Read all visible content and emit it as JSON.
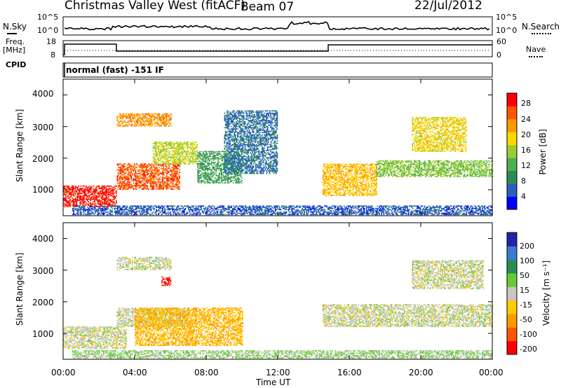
{
  "header": {
    "title": "Christmas Valley West (fitACF)",
    "beam": "Beam 07",
    "date": "22/Jul/2012"
  },
  "left_labels": {
    "nsky": "N.Sky",
    "freq_line1": "Freq.",
    "freq_line2": "[MHz]",
    "cpid": "CPID"
  },
  "right_labels": {
    "nsearch": "N.Search",
    "nave": "Nave"
  },
  "cpid_text": "normal (fast) -151 IF",
  "axes": {
    "noise_left_ticks": [
      "10^5",
      "10^0"
    ],
    "noise_right_ticks": [
      "10^5",
      "10^0"
    ],
    "freq_left_ticks": [
      "18",
      "8"
    ],
    "freq_right_ticks": [
      "60",
      "0"
    ],
    "range_ticks": [
      "4000",
      "3000",
      "2000",
      "1000"
    ],
    "time_ticks": [
      "00:00",
      "04:00",
      "08:00",
      "12:00",
      "16:00",
      "20:00",
      "00:00"
    ],
    "ylabel": "Slant Range [km]",
    "xlabel": "Time UT"
  },
  "colorbars": {
    "power": {
      "label": "Power [dB]",
      "ticks": [
        "28",
        "24",
        "20",
        "16",
        "12",
        "8",
        "4"
      ],
      "colors": [
        "#0000ff",
        "#2a5fc0",
        "#2e8b57",
        "#4caf50",
        "#9acd32",
        "#ffd700",
        "#ff9900",
        "#ff5500",
        "#ff0000"
      ]
    },
    "velocity": {
      "label": "Velocity [m s⁻¹]",
      "ticks": [
        "200",
        "100",
        "50",
        "15",
        "-15",
        "-50",
        "-100",
        "-200"
      ],
      "colors": [
        "#ff0000",
        "#ff5500",
        "#ff9900",
        "#ffcc00",
        "#c8c8c0",
        "#66cc33",
        "#2e8b57",
        "#3a7ad0",
        "#2222aa"
      ]
    }
  },
  "chart_data": [
    {
      "type": "heatmap",
      "quantity": "Power [dB]",
      "x_range_hours": [
        0,
        24
      ],
      "y_range_km": [
        180,
        4500
      ],
      "clim": [
        0,
        30
      ],
      "regions": [
        {
          "t": [
            0.0,
            3.0
          ],
          "r": [
            450,
            1100
          ],
          "value": 28
        },
        {
          "t": [
            3.0,
            6.5
          ],
          "r": [
            1000,
            1800
          ],
          "value": 25
        },
        {
          "t": [
            5.0,
            7.5
          ],
          "r": [
            1800,
            2500
          ],
          "value": 16
        },
        {
          "t": [
            7.5,
            10.0
          ],
          "r": [
            1200,
            2200
          ],
          "value": 10
        },
        {
          "t": [
            3.0,
            6.0
          ],
          "r": [
            3000,
            3400
          ],
          "value": 22
        },
        {
          "t": [
            9.0,
            12.0
          ],
          "r": [
            1500,
            3500
          ],
          "value": 6
        },
        {
          "t": [
            14.5,
            17.5
          ],
          "r": [
            800,
            1800
          ],
          "value": 20
        },
        {
          "t": [
            17.5,
            24.0
          ],
          "r": [
            1400,
            1900
          ],
          "value": 14
        },
        {
          "t": [
            19.5,
            22.5
          ],
          "r": [
            2200,
            3300
          ],
          "value": 18
        },
        {
          "t": [
            0.5,
            24.0
          ],
          "r": [
            200,
            500
          ],
          "value": 5
        }
      ]
    },
    {
      "type": "heatmap",
      "quantity": "Velocity [m s^-1]",
      "x_range_hours": [
        0,
        24
      ],
      "y_range_km": [
        180,
        4500
      ],
      "clim": [
        -250,
        250
      ],
      "regions": [
        {
          "t": [
            0.0,
            3.5
          ],
          "r": [
            500,
            1200
          ],
          "value": 0
        },
        {
          "t": [
            3.0,
            7.0
          ],
          "r": [
            1200,
            1800
          ],
          "value": 0
        },
        {
          "t": [
            4.0,
            10.0
          ],
          "r": [
            600,
            1800
          ],
          "value": -80
        },
        {
          "t": [
            5.5,
            6.0
          ],
          "r": [
            2500,
            2800
          ],
          "value": -220
        },
        {
          "t": [
            14.5,
            24.0
          ],
          "r": [
            1200,
            1900
          ],
          "value": 0
        },
        {
          "t": [
            19.5,
            23.5
          ],
          "r": [
            2400,
            3300
          ],
          "value": 0
        },
        {
          "t": [
            3.0,
            6.0
          ],
          "r": [
            3000,
            3400
          ],
          "value": 0
        },
        {
          "t": [
            0.5,
            24.0
          ],
          "r": [
            200,
            450
          ],
          "value": 30
        }
      ]
    }
  ]
}
